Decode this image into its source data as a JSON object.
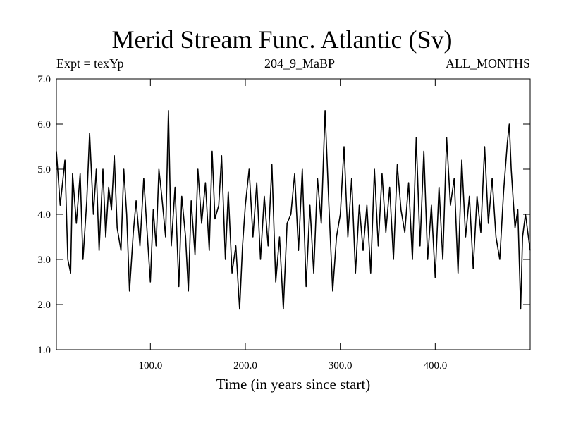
{
  "chart_data": {
    "type": "line",
    "title": "Merid Stream Func. Atlantic (Sv)",
    "subtitle_left": "Expt = texYp",
    "subtitle_center": "204_9_MaBP",
    "subtitle_right": "ALL_MONTHS",
    "xlabel": "Time (in years since start)",
    "ylabel": "",
    "xlim": [
      1,
      500
    ],
    "ylim": [
      1.0,
      7.0
    ],
    "x_ticks": [
      100,
      200,
      300,
      400
    ],
    "x_tick_labels": [
      "100.0",
      "200.0",
      "300.0",
      "400.0"
    ],
    "y_ticks": [
      1,
      2,
      3,
      4,
      5,
      6,
      7
    ],
    "y_tick_labels": [
      "1.0",
      "2.0",
      "3.0",
      "4.0",
      "5.0",
      "6.0",
      "7.0"
    ],
    "grid": false,
    "series": [
      {
        "color": "#000000",
        "x": [
          1,
          5,
          10,
          13,
          16,
          18,
          22,
          26,
          29,
          33,
          36,
          40,
          43,
          46,
          50,
          53,
          56,
          59,
          62,
          65,
          69,
          72,
          75,
          78,
          82,
          85,
          89,
          93,
          96,
          100,
          103,
          106,
          109,
          112,
          116,
          119,
          122,
          126,
          130,
          133,
          137,
          140,
          143,
          147,
          150,
          154,
          158,
          162,
          165,
          168,
          172,
          175,
          179,
          182,
          186,
          190,
          194,
          197,
          200,
          204,
          208,
          212,
          216,
          220,
          224,
          228,
          232,
          236,
          240,
          244,
          248,
          252,
          256,
          260,
          264,
          268,
          272,
          276,
          280,
          284,
          288,
          292,
          296,
          300,
          304,
          308,
          312,
          316,
          320,
          324,
          328,
          332,
          336,
          340,
          344,
          348,
          352,
          356,
          360,
          364,
          368,
          372,
          376,
          380,
          384,
          388,
          392,
          396,
          400,
          404,
          408,
          412,
          416,
          420,
          424,
          428,
          432,
          436,
          440,
          444,
          448,
          452,
          456,
          460,
          464,
          468,
          472,
          476,
          478,
          480,
          484,
          487,
          490,
          492,
          495,
          500
        ],
        "y": [
          5.4,
          4.2,
          5.2,
          3.0,
          2.7,
          4.9,
          3.8,
          4.9,
          3.0,
          4.3,
          5.8,
          4.0,
          5.0,
          3.2,
          5.0,
          3.5,
          4.6,
          4.1,
          5.3,
          3.7,
          3.2,
          5.0,
          4.0,
          2.3,
          3.6,
          4.3,
          3.3,
          4.8,
          3.8,
          2.5,
          4.1,
          3.3,
          5.0,
          4.4,
          3.5,
          6.3,
          3.3,
          4.6,
          2.4,
          4.4,
          3.5,
          2.3,
          4.3,
          3.1,
          5.0,
          3.8,
          4.7,
          3.2,
          5.4,
          3.9,
          4.2,
          5.3,
          3.0,
          4.5,
          2.7,
          3.3,
          1.9,
          3.3,
          4.2,
          5.0,
          3.5,
          4.7,
          3.0,
          4.4,
          3.3,
          5.1,
          2.5,
          3.5,
          1.9,
          3.8,
          4.0,
          4.9,
          3.2,
          5.0,
          2.4,
          4.2,
          2.7,
          4.8,
          3.8,
          6.3,
          4.2,
          2.3,
          3.5,
          4.0,
          5.5,
          3.5,
          4.8,
          2.7,
          4.2,
          3.2,
          4.2,
          2.7,
          5.0,
          3.3,
          4.9,
          3.6,
          4.6,
          3.0,
          5.1,
          4.1,
          3.6,
          4.7,
          3.0,
          5.7,
          3.3,
          5.4,
          3.0,
          4.2,
          2.6,
          4.6,
          3.0,
          5.7,
          4.2,
          4.8,
          2.7,
          5.2,
          3.5,
          4.4,
          2.8,
          4.4,
          3.6,
          5.5,
          3.8,
          4.8,
          3.5,
          3.0,
          4.5,
          5.6,
          6.0,
          5.0,
          3.7,
          4.1,
          1.9,
          3.5,
          4.0,
          3.2
        ]
      }
    ]
  }
}
